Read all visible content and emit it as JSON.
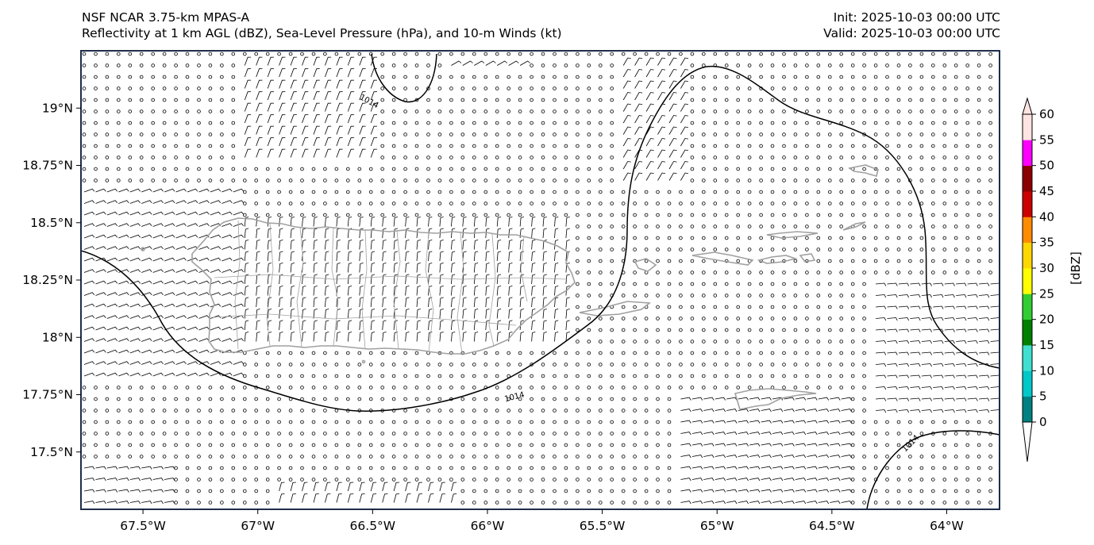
{
  "title": {
    "left_line1": "NSF NCAR 3.75-km MPAS-A",
    "left_line2": "Reflectivity at 1 km AGL (dBZ), Sea-Level Pressure (hPa), and 10-m Winds (kt)",
    "right_line1": "Init: 2025-10-03 00:00 UTC",
    "right_line2": "Valid: 2025-10-03 00:00 UTC"
  },
  "map": {
    "lon_range": [
      -67.77,
      -63.77
    ],
    "lat_range": [
      17.25,
      19.25
    ],
    "lon_ticks": [
      {
        "value": -67.5,
        "label": "67.5°W"
      },
      {
        "value": -67.0,
        "label": "67°W"
      },
      {
        "value": -66.5,
        "label": "66.5°W"
      },
      {
        "value": -66.0,
        "label": "66°W"
      },
      {
        "value": -65.5,
        "label": "65.5°W"
      },
      {
        "value": -65.0,
        "label": "65°W"
      },
      {
        "value": -64.5,
        "label": "64.5°W"
      },
      {
        "value": -64.0,
        "label": "64°W"
      }
    ],
    "lat_ticks": [
      {
        "value": 19.0,
        "label": "19°N"
      },
      {
        "value": 18.75,
        "label": "18.75°N"
      },
      {
        "value": 18.5,
        "label": "18.5°N"
      },
      {
        "value": 18.25,
        "label": "18.25°N"
      },
      {
        "value": 18.0,
        "label": "18°N"
      },
      {
        "value": 17.75,
        "label": "17.75°N"
      },
      {
        "value": 17.5,
        "label": "17.5°N"
      }
    ],
    "isobar_labels": [
      {
        "text": "1014",
        "lon": -66.52,
        "lat": 19.02,
        "angle": 28
      },
      {
        "text": "1014",
        "lon": -65.88,
        "lat": 17.73,
        "angle": -14
      },
      {
        "text": "1014",
        "lon": -64.15,
        "lat": 17.53,
        "angle": -45
      }
    ],
    "colors": {
      "coast": "#a0a0a0",
      "isobar": "#000000",
      "barb": "#000000",
      "frame": "#1f2d4a"
    }
  },
  "colorbar": {
    "label": "[dBZ]",
    "ticks": [
      "0",
      "5",
      "10",
      "15",
      "20",
      "25",
      "30",
      "35",
      "40",
      "45",
      "50",
      "55",
      "60"
    ],
    "colors": [
      "#008080",
      "#00c8c8",
      "#40e0d0",
      "#008000",
      "#32cd32",
      "#ffff00",
      "#ffd700",
      "#ff8c00",
      "#cc0000",
      "#8b0000",
      "#ff00ff",
      "#ffe4e1"
    ],
    "extend": "both",
    "under_color": "#ffffff",
    "over_color": "#ffe4e1"
  }
}
